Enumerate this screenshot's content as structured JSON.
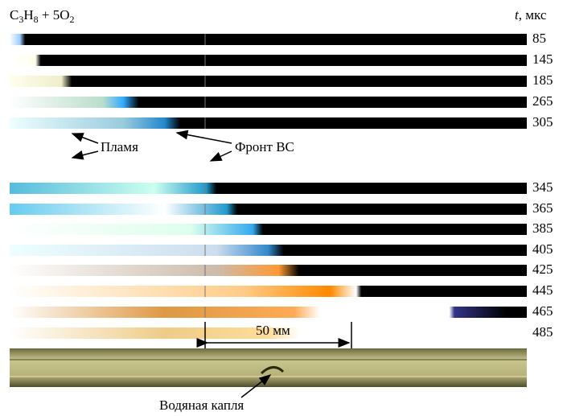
{
  "title_parts": [
    "C",
    "3",
    "H",
    "8",
    " + 5O",
    "2"
  ],
  "time_label": {
    "symbol": "t",
    "unit": ", мкс"
  },
  "times": [
    85,
    145,
    185,
    265,
    305,
    345,
    365,
    385,
    405,
    425,
    445,
    465,
    485
  ],
  "annotations": {
    "flame": "Пламя",
    "front": "Фронт ВС",
    "scale": "50 мм",
    "droplet": "Водяная капля"
  }
}
